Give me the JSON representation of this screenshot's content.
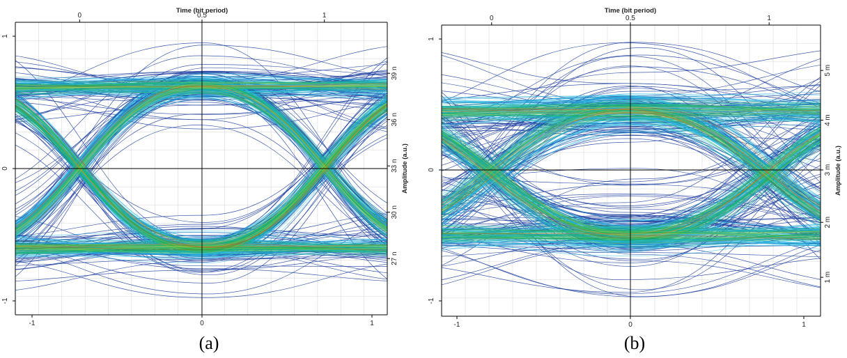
{
  "captions": [
    "(a)",
    "(b)"
  ],
  "colors": {
    "outer_traces": "#1c3ea0",
    "dense_traces": "#21b4e0",
    "mid_density": "#22b54a",
    "high_density": "#f0d22a",
    "peak_density": "#e04a1a",
    "grid": "#d8d8d8",
    "axes": "#000000"
  },
  "chart_data": [
    {
      "type": "eye_diagram",
      "top_axis_label": "Time (bit period)",
      "top_ticks": [
        "0",
        "0.5",
        "1"
      ],
      "top_tick_values": [
        0,
        0.5,
        1
      ],
      "bottom_ticks": [
        "-1",
        "0",
        "1"
      ],
      "bottom_tick_values": [
        -1,
        0,
        1
      ],
      "xlim": [
        -1,
        1
      ],
      "left_ticks": [
        "1",
        "0",
        "-1"
      ],
      "left_tick_values": [
        1,
        0,
        -1
      ],
      "ylim": [
        -1,
        1
      ],
      "right_axis_label": "Amplitude (a.u.)",
      "right_ticks": [
        "39 n",
        "36 n",
        "33 n",
        "30 n",
        "27 n"
      ],
      "right_tick_values": [
        0.72,
        0.37,
        0.02,
        -0.33,
        -0.68
      ],
      "traces": {
        "upper_level": 0.62,
        "lower_level": -0.6,
        "level_spread": 0.13,
        "eye_open_top": 0.44,
        "eye_open_bottom": -0.4,
        "crossing_time": [
          -0.72,
          0.72
        ],
        "crossing_width": 0.1,
        "overshoot_max": 0.98,
        "undershoot_min": -0.98
      },
      "grid": true
    },
    {
      "type": "eye_diagram",
      "top_axis_label": "Time (bit period)",
      "top_ticks": [
        "0",
        "0.5",
        "1"
      ],
      "top_tick_values": [
        0,
        0.5,
        1
      ],
      "bottom_ticks": [
        "-1",
        "0",
        "1"
      ],
      "bottom_tick_values": [
        -1,
        0,
        1
      ],
      "xlim": [
        -1,
        1
      ],
      "left_ticks": [
        "1",
        "0",
        "-1"
      ],
      "left_tick_values": [
        1,
        0,
        -1
      ],
      "ylim": [
        -1,
        1
      ],
      "right_axis_label": "Amplitude (a.u.)",
      "right_ticks": [
        "5 m",
        "4 m",
        "3 m",
        "2 m",
        "1 m"
      ],
      "right_tick_values": [
        0.76,
        0.38,
        0.0,
        -0.4,
        -0.82
      ],
      "traces": {
        "upper_level": 0.45,
        "lower_level": -0.5,
        "level_spread": 0.2,
        "eye_open_top": 0.2,
        "eye_open_bottom": -0.2,
        "crossing_time": [
          -0.8,
          0.8
        ],
        "crossing_width": 0.22,
        "overshoot_max": 0.97,
        "undershoot_min": -0.98
      },
      "grid": true
    }
  ]
}
